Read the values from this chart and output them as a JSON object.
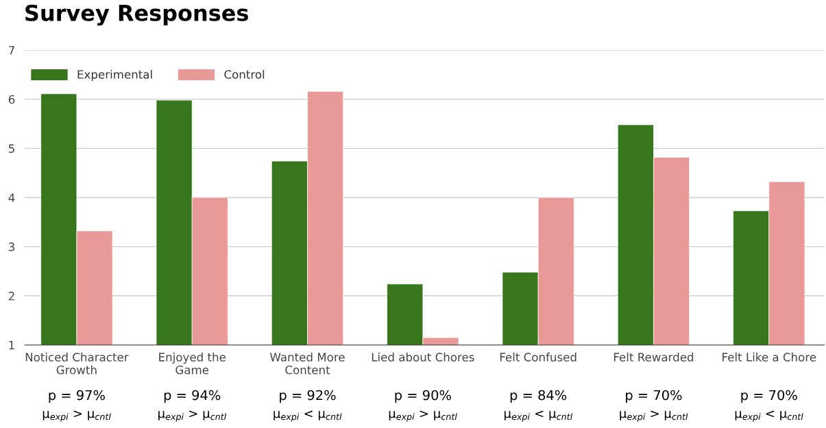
{
  "chart_data": {
    "type": "bar",
    "title": "Survey Responses",
    "categories": [
      "Noticed Character\nGrowth",
      "Enjoyed the\nGame",
      "Wanted More\nContent",
      "Lied about Chores",
      "Felt Confused",
      "Felt Rewarded",
      "Felt Like a Chore"
    ],
    "series": [
      {
        "name": "Experimental",
        "color": "#38761d",
        "values": [
          6.11,
          5.98,
          4.74,
          2.24,
          2.48,
          5.48,
          3.73
        ]
      },
      {
        "name": "Control",
        "color": "#ea9999",
        "values": [
          3.32,
          4.0,
          6.16,
          1.15,
          4.0,
          4.82,
          4.32
        ]
      }
    ],
    "ylim": [
      1,
      7
    ],
    "yticks": [
      1,
      2,
      3,
      4,
      5,
      6,
      7
    ],
    "grid": "y",
    "legend": "top left",
    "annotations": [
      "p = 97%",
      "μ$_{expi}$ > μ$_{cntl}$",
      "p = 94%",
      "μ$_{expi}$ > μ$_{cntl}$",
      "p = 92%",
      "μ$_{expi}$ < μ$_{cntl}$",
      "p = 90%",
      "μ$_{expi}$ > μ$_{cntl}$",
      "p = 84%",
      "μ$_{expi}$ < μ$_{cntl}$",
      "p = 70%",
      "μ$_{expi}$ > μ$_{cntl}$",
      "p = 70%",
      "μ$_{expi}$ < μ$_{cntl}$"
    ]
  }
}
